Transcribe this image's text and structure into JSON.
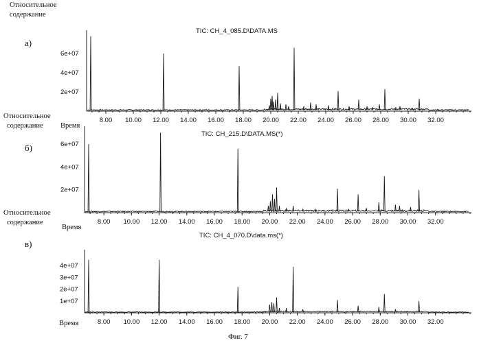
{
  "figure_caption": "Фиг. 7",
  "chart_data": [
    {
      "type": "line",
      "panel_label": "а)",
      "title": "TIC: CH_4_085.D\\DATA.MS",
      "ylabel": "Относительное содержание",
      "xlabel": "Время",
      "x_ticks": [
        "8.00",
        "10.00",
        "12.00",
        "14.00",
        "16.00",
        "18.00",
        "20.00",
        "22.00",
        "24.00",
        "26.00",
        "28.00",
        "30.00",
        "32.00"
      ],
      "y_ticks": [
        {
          "value": 20000000,
          "label": "2e+07"
        },
        {
          "value": 40000000,
          "label": "4e+07"
        },
        {
          "value": 60000000,
          "label": "6e+07"
        }
      ],
      "xlim": [
        6.6,
        34.6
      ],
      "ylim": [
        0,
        80000000
      ],
      "grid": false,
      "baseline": 1200000,
      "peaks": [
        {
          "x": 6.9,
          "y": 78000000
        },
        {
          "x": 12.2,
          "y": 60000000
        },
        {
          "x": 17.7,
          "y": 47000000
        },
        {
          "x": 19.9,
          "y": 6000000
        },
        {
          "x": 20.0,
          "y": 13000000
        },
        {
          "x": 20.1,
          "y": 16000000
        },
        {
          "x": 20.2,
          "y": 10000000
        },
        {
          "x": 20.35,
          "y": 12000000
        },
        {
          "x": 20.5,
          "y": 19000000
        },
        {
          "x": 20.7,
          "y": 8000000
        },
        {
          "x": 21.1,
          "y": 7000000
        },
        {
          "x": 21.3,
          "y": 5000000
        },
        {
          "x": 21.7,
          "y": 66000000
        },
        {
          "x": 22.4,
          "y": 5000000
        },
        {
          "x": 22.9,
          "y": 9000000
        },
        {
          "x": 23.3,
          "y": 7000000
        },
        {
          "x": 24.2,
          "y": 6000000
        },
        {
          "x": 24.9,
          "y": 21000000
        },
        {
          "x": 25.7,
          "y": 5000000
        },
        {
          "x": 26.4,
          "y": 12000000
        },
        {
          "x": 27.0,
          "y": 5000000
        },
        {
          "x": 27.4,
          "y": 4000000
        },
        {
          "x": 27.9,
          "y": 7000000
        },
        {
          "x": 28.3,
          "y": 23000000
        },
        {
          "x": 29.1,
          "y": 4000000
        },
        {
          "x": 29.4,
          "y": 5000000
        },
        {
          "x": 30.3,
          "y": 3000000
        },
        {
          "x": 30.8,
          "y": 13000000
        }
      ]
    },
    {
      "type": "line",
      "panel_label": "б)",
      "title": "TIC: CH_215.D\\DATA.MS(*)",
      "ylabel": "Относительное содержание",
      "xlabel": "Время",
      "x_ticks": [
        "8.00",
        "10.00",
        "12.00",
        "14.00",
        "16.00",
        "18.00",
        "20.00",
        "22.00",
        "24.00",
        "26.00",
        "28.00",
        "30.00",
        "32.00"
      ],
      "y_ticks": [
        {
          "value": 20000000,
          "label": "2e+07"
        },
        {
          "value": 40000000,
          "label": "4e+07"
        },
        {
          "value": 60000000,
          "label": "6e+07"
        }
      ],
      "xlim": [
        6.6,
        34.6
      ],
      "ylim": [
        0,
        72000000
      ],
      "grid": false,
      "baseline": 1000000,
      "peaks": [
        {
          "x": 6.9,
          "y": 60000000
        },
        {
          "x": 12.1,
          "y": 70000000
        },
        {
          "x": 17.7,
          "y": 56000000
        },
        {
          "x": 19.9,
          "y": 6000000
        },
        {
          "x": 20.05,
          "y": 10000000
        },
        {
          "x": 20.2,
          "y": 16000000
        },
        {
          "x": 20.35,
          "y": 12000000
        },
        {
          "x": 20.5,
          "y": 22000000
        },
        {
          "x": 20.7,
          "y": 6000000
        },
        {
          "x": 21.2,
          "y": 4000000
        },
        {
          "x": 21.7,
          "y": 6000000
        },
        {
          "x": 22.4,
          "y": 3000000
        },
        {
          "x": 23.3,
          "y": 3000000
        },
        {
          "x": 24.9,
          "y": 21000000
        },
        {
          "x": 25.7,
          "y": 3000000
        },
        {
          "x": 26.4,
          "y": 16000000
        },
        {
          "x": 27.0,
          "y": 4000000
        },
        {
          "x": 27.9,
          "y": 9000000
        },
        {
          "x": 28.3,
          "y": 32000000
        },
        {
          "x": 29.1,
          "y": 7000000
        },
        {
          "x": 29.4,
          "y": 6000000
        },
        {
          "x": 30.2,
          "y": 5000000
        },
        {
          "x": 30.8,
          "y": 20000000
        }
      ]
    },
    {
      "type": "line",
      "panel_label": "в)",
      "title": "TIC: CH_4_070.D\\data.ms(*)",
      "ylabel": "Относительное содержание",
      "xlabel": "Время",
      "x_ticks": [
        "8.00",
        "10.00",
        "12.00",
        "14.00",
        "16.00",
        "18.00",
        "20.00",
        "22.00",
        "24.00",
        "26.00",
        "28.00",
        "30.00",
        "32.00"
      ],
      "y_ticks": [
        {
          "value": 10000000,
          "label": "1e+07"
        },
        {
          "value": 20000000,
          "label": "2e+07"
        },
        {
          "value": 30000000,
          "label": "3e+07"
        },
        {
          "value": 40000000,
          "label": "4e+07"
        }
      ],
      "xlim": [
        6.6,
        34.6
      ],
      "ylim": [
        0,
        50000000
      ],
      "grid": false,
      "baseline": 600000,
      "peaks": [
        {
          "x": 6.9,
          "y": 45000000
        },
        {
          "x": 12.0,
          "y": 45000000
        },
        {
          "x": 17.7,
          "y": 22000000
        },
        {
          "x": 20.0,
          "y": 7000000
        },
        {
          "x": 20.15,
          "y": 9000000
        },
        {
          "x": 20.3,
          "y": 8000000
        },
        {
          "x": 20.5,
          "y": 13000000
        },
        {
          "x": 20.7,
          "y": 4000000
        },
        {
          "x": 21.2,
          "y": 4000000
        },
        {
          "x": 21.7,
          "y": 39000000
        },
        {
          "x": 22.4,
          "y": 3000000
        },
        {
          "x": 24.9,
          "y": 11000000
        },
        {
          "x": 26.4,
          "y": 6000000
        },
        {
          "x": 27.9,
          "y": 5000000
        },
        {
          "x": 28.3,
          "y": 16000000
        },
        {
          "x": 29.1,
          "y": 3000000
        },
        {
          "x": 30.8,
          "y": 10000000
        }
      ]
    }
  ]
}
